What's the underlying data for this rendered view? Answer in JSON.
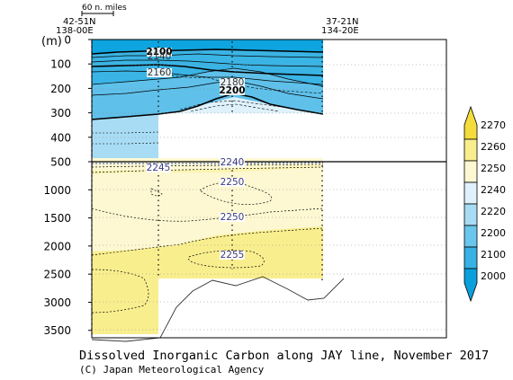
{
  "chart_data": {
    "type": "contour-section",
    "title": "Dissolved Inorganic Carbon along JAY line, November 2017",
    "credit": "(C) Japan Meteorological Agency",
    "y_unit_label": "(m)",
    "scale_label": "60 n. miles",
    "left_station": {
      "lat": "42-51N",
      "lon": "138-00E"
    },
    "right_station": {
      "lat": "37-21N",
      "lon": "134-20E"
    },
    "y_upper": {
      "range": [
        0,
        500
      ],
      "ticks": [
        0,
        100,
        200,
        300,
        400,
        500
      ]
    },
    "y_lower": {
      "range": [
        500,
        3800
      ],
      "ticks": [
        1000,
        1500,
        2000,
        2500,
        3000,
        3500
      ]
    },
    "contour_labels": [
      {
        "text": "2100",
        "bold": true
      },
      {
        "text": "2140",
        "bold": false
      },
      {
        "text": "2160",
        "bold": false
      },
      {
        "text": "2180",
        "bold": false
      },
      {
        "text": "2200",
        "bold": true
      },
      {
        "text": "2240",
        "bold": false
      },
      {
        "text": "2245",
        "bold": false
      },
      {
        "text": "2250",
        "bold": false
      },
      {
        "text": "2250",
        "bold": false
      },
      {
        "text": "2255",
        "bold": false
      }
    ],
    "colorbar": {
      "levels": [
        2000,
        2100,
        2200,
        2220,
        2240,
        2250,
        2260,
        2270
      ],
      "colors": [
        "#0aa0dc",
        "#38b2e4",
        "#6ac6ec",
        "#a8dcf4",
        "#dff1fb",
        "#fdf8d2",
        "#f9ee8e",
        "#f4dc3c"
      ]
    }
  }
}
